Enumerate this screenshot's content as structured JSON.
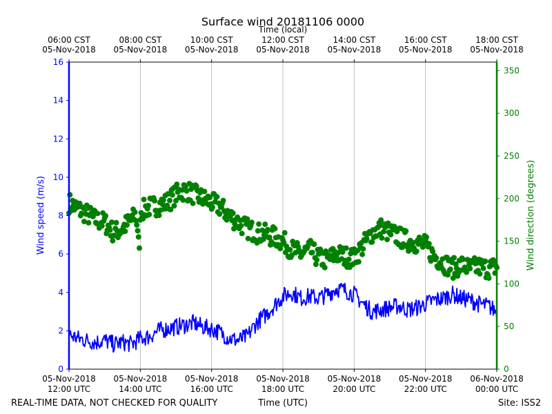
{
  "chart_data": {
    "type": "line+scatter",
    "title": "Surface wind 20181106 0000",
    "top_axis_label": "Time (local)",
    "xlabel": "Time (UTC)",
    "ylabel_left": "Wind speed (m/s)",
    "ylabel_right": "Wind direction (degrees)",
    "xlim_hours_utc": [
      12,
      24
    ],
    "ylim_left": [
      0,
      16
    ],
    "ylim_right": [
      0,
      360
    ],
    "left_ticks": [
      0,
      2,
      4,
      6,
      8,
      10,
      12,
      14,
      16
    ],
    "right_ticks": [
      0,
      50,
      100,
      150,
      200,
      250,
      300,
      350
    ],
    "bottom_ticks": [
      {
        "hour": 12,
        "line1": "05-Nov-2018",
        "line2": "12:00 UTC"
      },
      {
        "hour": 14,
        "line1": "05-Nov-2018",
        "line2": "14:00 UTC"
      },
      {
        "hour": 16,
        "line1": "05-Nov-2018",
        "line2": "16:00 UTC"
      },
      {
        "hour": 18,
        "line1": "05-Nov-2018",
        "line2": "18:00 UTC"
      },
      {
        "hour": 20,
        "line1": "05-Nov-2018",
        "line2": "20:00 UTC"
      },
      {
        "hour": 22,
        "line1": "05-Nov-2018",
        "line2": "22:00 UTC"
      },
      {
        "hour": 24,
        "line1": "06-Nov-2018",
        "line2": "00:00 UTC"
      }
    ],
    "top_ticks": [
      {
        "hour": 12,
        "line1": "06:00 CST",
        "line2": "05-Nov-2018"
      },
      {
        "hour": 14,
        "line1": "08:00 CST",
        "line2": "05-Nov-2018"
      },
      {
        "hour": 16,
        "line1": "10:00 CST",
        "line2": "05-Nov-2018"
      },
      {
        "hour": 18,
        "line1": "12:00 CST",
        "line2": "05-Nov-2018"
      },
      {
        "hour": 20,
        "line1": "14:00 CST",
        "line2": "05-Nov-2018"
      },
      {
        "hour": 22,
        "line1": "16:00 CST",
        "line2": "05-Nov-2018"
      },
      {
        "hour": 24,
        "line1": "18:00 CST",
        "line2": "05-Nov-2018"
      }
    ],
    "grid": "vertical",
    "series": [
      {
        "name": "Wind speed (m/s)",
        "kind": "line",
        "axis": "left",
        "color": "#0000ff",
        "x_hours": [
          12.0,
          12.25,
          12.5,
          12.75,
          13.0,
          13.25,
          13.5,
          13.75,
          14.0,
          14.25,
          14.5,
          14.75,
          15.0,
          15.25,
          15.5,
          15.75,
          16.0,
          16.25,
          16.5,
          16.75,
          17.0,
          17.25,
          17.5,
          17.75,
          18.0,
          18.25,
          18.5,
          18.75,
          19.0,
          19.25,
          19.5,
          19.75,
          20.0,
          20.25,
          20.5,
          20.75,
          21.0,
          21.25,
          21.5,
          21.75,
          22.0,
          22.25,
          22.5,
          22.75,
          23.0,
          23.25,
          23.5,
          23.75,
          24.0
        ],
        "values": [
          1.8,
          1.6,
          1.5,
          1.4,
          1.5,
          1.3,
          1.4,
          1.3,
          1.6,
          1.7,
          2.0,
          2.1,
          2.2,
          2.3,
          2.4,
          2.2,
          2.1,
          1.9,
          1.6,
          1.5,
          1.7,
          2.4,
          2.8,
          3.3,
          3.8,
          4.0,
          3.7,
          3.8,
          3.7,
          3.9,
          4.2,
          4.1,
          3.9,
          3.4,
          3.0,
          3.1,
          3.2,
          3.3,
          3.1,
          3.2,
          3.4,
          3.6,
          3.7,
          3.9,
          3.7,
          3.6,
          3.4,
          3.3,
          3.0
        ],
        "noise": 0.45
      },
      {
        "name": "Wind direction (degrees)",
        "kind": "scatter",
        "axis": "right",
        "color": "#008000",
        "x_hours": [
          12.0,
          12.25,
          12.5,
          12.75,
          13.0,
          13.25,
          13.5,
          13.75,
          14.0,
          14.25,
          14.5,
          14.75,
          15.0,
          15.25,
          15.5,
          15.75,
          16.0,
          16.25,
          16.5,
          16.75,
          17.0,
          17.25,
          17.5,
          17.75,
          18.0,
          18.25,
          18.5,
          18.75,
          19.0,
          19.25,
          19.5,
          19.75,
          20.0,
          20.25,
          20.5,
          20.75,
          21.0,
          21.25,
          21.5,
          21.75,
          22.0,
          22.25,
          22.5,
          22.75,
          23.0,
          23.25,
          23.5,
          23.75,
          24.0
        ],
        "values": [
          195,
          188,
          182,
          175,
          172,
          160,
          165,
          175,
          185,
          190,
          192,
          195,
          205,
          210,
          205,
          200,
          195,
          190,
          180,
          172,
          165,
          160,
          158,
          155,
          150,
          140,
          135,
          140,
          130,
          128,
          135,
          132,
          130,
          145,
          160,
          165,
          160,
          155,
          150,
          148,
          145,
          132,
          125,
          118,
          122,
          118,
          120,
          118,
          120
        ],
        "noise": 12
      }
    ]
  },
  "footer": {
    "left": "REAL-TIME DATA, NOT CHECKED FOR QUALITY",
    "center": "Time (UTC)",
    "right": "Site: ISS2"
  }
}
